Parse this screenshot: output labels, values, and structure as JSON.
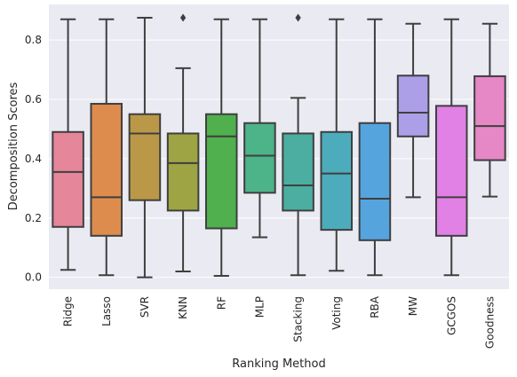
{
  "chart_data": {
    "type": "box",
    "title": "",
    "xlabel": "Ranking Method",
    "ylabel": "Decomposition Scores",
    "ylim": [
      -0.04,
      0.92
    ],
    "yticks": [
      0.0,
      0.2,
      0.4,
      0.6,
      0.8
    ],
    "ytick_labels": [
      "0.0",
      "0.2",
      "0.4",
      "0.6",
      "0.8"
    ],
    "grid": true,
    "background": "#eaeaf2",
    "edge_color": "#3f3f3f",
    "categories": [
      "Ridge",
      "Lasso",
      "SVR",
      "KNN",
      "RF",
      "MLP",
      "Stacking",
      "Voting",
      "RBA",
      "MW",
      "GCGOS",
      "Goodness"
    ],
    "boxes": [
      {
        "name": "Ridge",
        "color": "#e5869a",
        "whisker_low": 0.025,
        "q1": 0.17,
        "median": 0.355,
        "q3": 0.49,
        "whisker_high": 0.87,
        "outliers": []
      },
      {
        "name": "Lasso",
        "color": "#dd8c4e",
        "whisker_low": 0.007,
        "q1": 0.14,
        "median": 0.27,
        "q3": 0.585,
        "whisker_high": 0.87,
        "outliers": []
      },
      {
        "name": "SVR",
        "color": "#bb9847",
        "whisker_low": 0.0,
        "q1": 0.26,
        "median": 0.485,
        "q3": 0.55,
        "whisker_high": 0.875,
        "outliers": []
      },
      {
        "name": "KNN",
        "color": "#9ea443",
        "whisker_low": 0.02,
        "q1": 0.225,
        "median": 0.385,
        "q3": 0.485,
        "whisker_high": 0.705,
        "outliers": [
          0.875
        ]
      },
      {
        "name": "RF",
        "color": "#4fb04d",
        "whisker_low": 0.005,
        "q1": 0.165,
        "median": 0.475,
        "q3": 0.55,
        "whisker_high": 0.87,
        "outliers": []
      },
      {
        "name": "MLP",
        "color": "#4db389",
        "whisker_low": 0.135,
        "q1": 0.285,
        "median": 0.41,
        "q3": 0.52,
        "whisker_high": 0.87,
        "outliers": []
      },
      {
        "name": "Stacking",
        "color": "#4baea0",
        "whisker_low": 0.007,
        "q1": 0.225,
        "median": 0.31,
        "q3": 0.485,
        "whisker_high": 0.605,
        "outliers": [
          0.875
        ]
      },
      {
        "name": "Voting",
        "color": "#4cacbc",
        "whisker_low": 0.022,
        "q1": 0.16,
        "median": 0.35,
        "q3": 0.49,
        "whisker_high": 0.87,
        "outliers": []
      },
      {
        "name": "RBA",
        "color": "#55a4de",
        "whisker_low": 0.007,
        "q1": 0.125,
        "median": 0.265,
        "q3": 0.52,
        "whisker_high": 0.87,
        "outliers": []
      },
      {
        "name": "MW",
        "color": "#ac9fe8",
        "whisker_low": 0.27,
        "q1": 0.475,
        "median": 0.555,
        "q3": 0.68,
        "whisker_high": 0.855,
        "outliers": []
      },
      {
        "name": "GCGOS",
        "color": "#e181e5",
        "whisker_low": 0.007,
        "q1": 0.14,
        "median": 0.27,
        "q3": 0.578,
        "whisker_high": 0.87,
        "outliers": []
      },
      {
        "name": "Goodness",
        "color": "#e687c6",
        "whisker_low": 0.272,
        "q1": 0.395,
        "median": 0.51,
        "q3": 0.678,
        "whisker_high": 0.855,
        "outliers": []
      }
    ]
  }
}
